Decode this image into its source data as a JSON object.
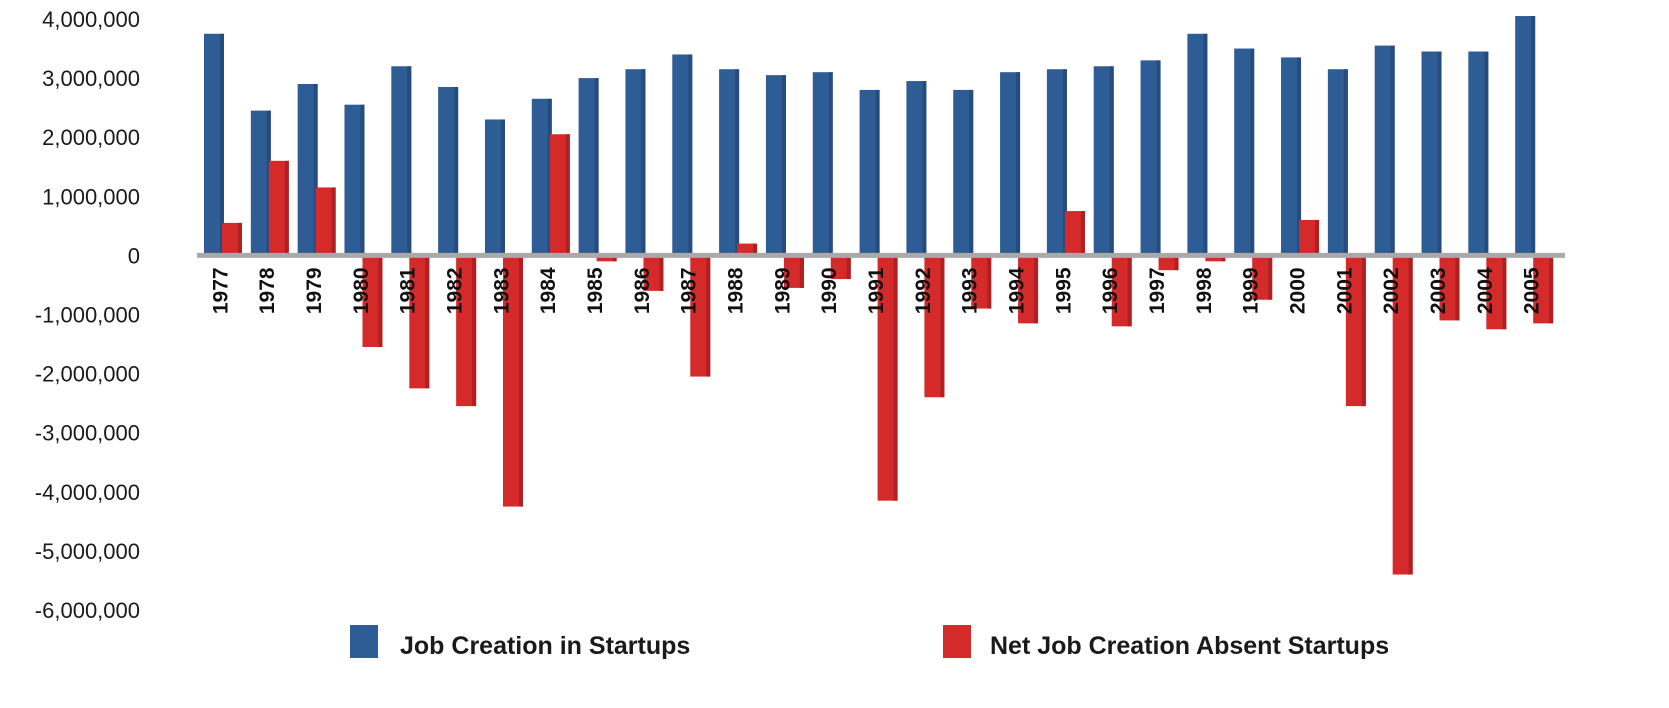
{
  "chart_data": {
    "type": "bar",
    "categories": [
      "1977",
      "1978",
      "1979",
      "1980",
      "1981",
      "1982",
      "1983",
      "1984",
      "1985",
      "1986",
      "1987",
      "1988",
      "1989",
      "1990",
      "1991",
      "1992",
      "1993",
      "1994",
      "1995",
      "1996",
      "1997",
      "1998",
      "1999",
      "2000",
      "2001",
      "2002",
      "2003",
      "2004",
      "2005"
    ],
    "series": [
      {
        "name": "Job Creation in Startups",
        "color": "#2e5c94",
        "values": [
          3750000,
          2450000,
          2900000,
          2550000,
          3200000,
          2850000,
          2300000,
          2650000,
          3000000,
          3150000,
          3400000,
          3150000,
          3050000,
          3100000,
          2800000,
          2950000,
          2800000,
          3100000,
          3150000,
          3200000,
          3300000,
          3750000,
          3500000,
          3350000,
          3150000,
          3550000,
          3450000,
          3450000,
          4050000
        ]
      },
      {
        "name": "Net Job Creation Absent Startups",
        "color": "#d42a2a",
        "values": [
          550000,
          1600000,
          1150000,
          -1550000,
          -2250000,
          -2550000,
          -4250000,
          2050000,
          -100000,
          -600000,
          -2050000,
          200000,
          -550000,
          -400000,
          -4150000,
          -2400000,
          -900000,
          -1150000,
          750000,
          -1200000,
          -250000,
          -100000,
          -750000,
          600000,
          -2550000,
          -5400000,
          -1100000,
          -1250000,
          -1150000
        ]
      }
    ],
    "y_ticks": [
      "4,000,000",
      "3,000,000",
      "2,000,000",
      "1,000,000",
      "0",
      "-1,000,000",
      "-2,000,000",
      "-3,000,000",
      "-4,000,000",
      "-5,000,000",
      "-6,000,000"
    ],
    "ylim": [
      -6000000,
      4000000
    ],
    "legend_position": "bottom",
    "grid": false
  }
}
